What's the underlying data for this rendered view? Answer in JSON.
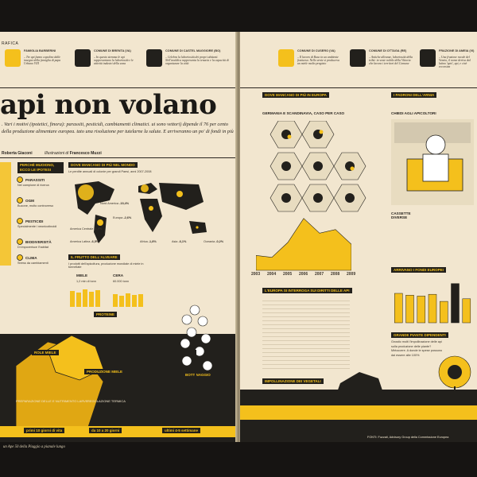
{
  "header": {
    "section": "RAFICA",
    "left_items": [
      {
        "title": "FAMIGLIA BARBERINI",
        "text": "– Tre api fanno capolino dalle insegne della famiglia di papa Urbano VIII"
      },
      {
        "title": "COMUNE DI BRENTA (VA)",
        "text": "– In questo stemma le api rappresentano la laboriosità e le attività industri della zona"
      },
      {
        "title": "COMUNE DI CASTEL MAGGIORE (BO)",
        "text": "– Celebra la laboriosità dei propri abitanti. Nell'araldica rappresenta la tenacia e la capacità di organizzare la città"
      }
    ],
    "right_items": [
      {
        "title": "COMUNE DI CUSERO (VA)",
        "text": "– Il lavoro di Ruso in un ambiente fruttuoso. Nelle arnie si produceva un miele molto pregiato"
      },
      {
        "title": "COMUNE DI OTTAGA (RE)",
        "text": "– Antiche alleanze, laboriosità della tribù: in veste nobile della Vittoria che lavora i territori del Comune"
      },
      {
        "title": "FRAZIONE DI AMEIA (VI)",
        "text": "– Una frazione rurale del Veneto, il nome deriva dal latino 'apis', api, e cioè eccessiva"
      }
    ]
  },
  "headline": "api non volano",
  "deck": ". Vari i motivi (ipotetici, finora): parassiti, pesticidi, cambiamenti climatici. ui sono vettori) dipende il 76 per cento della produzione alimentare europea. tato una risoluzione per tutelarne la salute. E arriveranno un po' di fondi in più",
  "byline": {
    "author": "Roberta Giaconi",
    "illustrator_label": "Illustrazioni di",
    "illustrator": "Francesco Muzzi"
  },
  "left": {
    "why_title": "PERCHÉ MUOIONO, ECCO LE IPOTESI",
    "causes": [
      {
        "label": "PARASSITI",
        "note": "Nel campione di ricerca"
      },
      {
        "label": "OGM",
        "note": "Bucone, molto controverso"
      },
      {
        "label": "PESTICIDI",
        "note": "Specialmente i neonicotinoidi"
      },
      {
        "label": "BIODIVERSITÀ",
        "note": "Di impoverisce l'habitat"
      },
      {
        "label": "CLIMA",
        "note": "Stress da cambiamenti"
      }
    ],
    "world_title": "DOVE MANCANO DI PIÙ NEL MONDO",
    "world_sub": "Le perdite annuali di colonie per grandi Paesi, anni 2007-2008",
    "regions": [
      {
        "name": "Nord America",
        "value": "-19,4%"
      },
      {
        "name": "Europa",
        "value": "-2,6%"
      },
      {
        "name": "America Centrale",
        "value": "-6,9%"
      },
      {
        "name": "America Latina",
        "value": "-6,5%"
      },
      {
        "name": "Africa",
        "value": "-1,8%"
      },
      {
        "name": "Asia",
        "value": "-6,1%"
      },
      {
        "name": "Oceania",
        "value": "-0,2%"
      }
    ],
    "table_values": [
      "-47%",
      "-6%",
      "-25%",
      "-6%",
      "-15%"
    ],
    "fruit_title": "IL FRUTTO DELL'ALVEARE",
    "fruit_sub": "I prodotti dell'apicoltura, produzione mondiale di miele in tonnellate",
    "fruit_items": [
      {
        "label": "MIELE",
        "value": "1,2 mln di tonn"
      },
      {
        "label": "CERA",
        "value": "60.000 tonn"
      }
    ],
    "proteine": "PROTEINE",
    "labels": {
      "mole_miele": "ROLE MIELE",
      "produzione": "PRODUZIONE MIELE",
      "preparazione": "PREPARAZIONE DELLE E NUTRIMENTO LARVE",
      "regolazione": "REGOLAZIONE TERMICA",
      "bottinaggio": "BOTTINAGGIO"
    },
    "timeline": [
      {
        "label": "primi 10 giorni di vita"
      },
      {
        "label": "da 10 a 20 giorni"
      },
      {
        "label": "ultimi 4-5 settimane"
      }
    ],
    "footer": "un Ape 50 della Piaggio a pianale lungo"
  },
  "right": {
    "europe_title": "DOVE MANCANO DI PIÙ IN EUROPA",
    "europe_sub": "Germania e Scandinavia, caso per caso",
    "chart_years": [
      "2003",
      "2004",
      "2005",
      "2006",
      "2007",
      "2008",
      "2009"
    ],
    "chart_values_pct": [
      8,
      7,
      15,
      28,
      20,
      22,
      14
    ],
    "bee_rights_title": "L'EUROPA SI INTERROGA SUI DIRITTI DELLE API",
    "pollination_title": "IMPOLLINAZIONE DEI VEGETALI",
    "masters_title": "I PADRONI DELL'ARNIA",
    "apicoltori_title": "CHIEDI AGLI APICOLTORI",
    "cassette": "CASSETTE DIVERSE",
    "fondi_title": "ARRIVANO I FONDI EUROPEI",
    "fondi_bar_values": [
      33,
      31,
      30,
      32,
      24,
      44,
      27
    ],
    "dependents_title": "GRANDE PIANTE DIPENDENTI",
    "dependents_text": "Gnostic molti l'impollinazione delle api sulla produzione delle piante? Mirtoccere. A donde le spese possono dai essere alte 100%",
    "fonti": "FONTI: Fuzzati, Advisory Group della Commissione Europea"
  }
}
